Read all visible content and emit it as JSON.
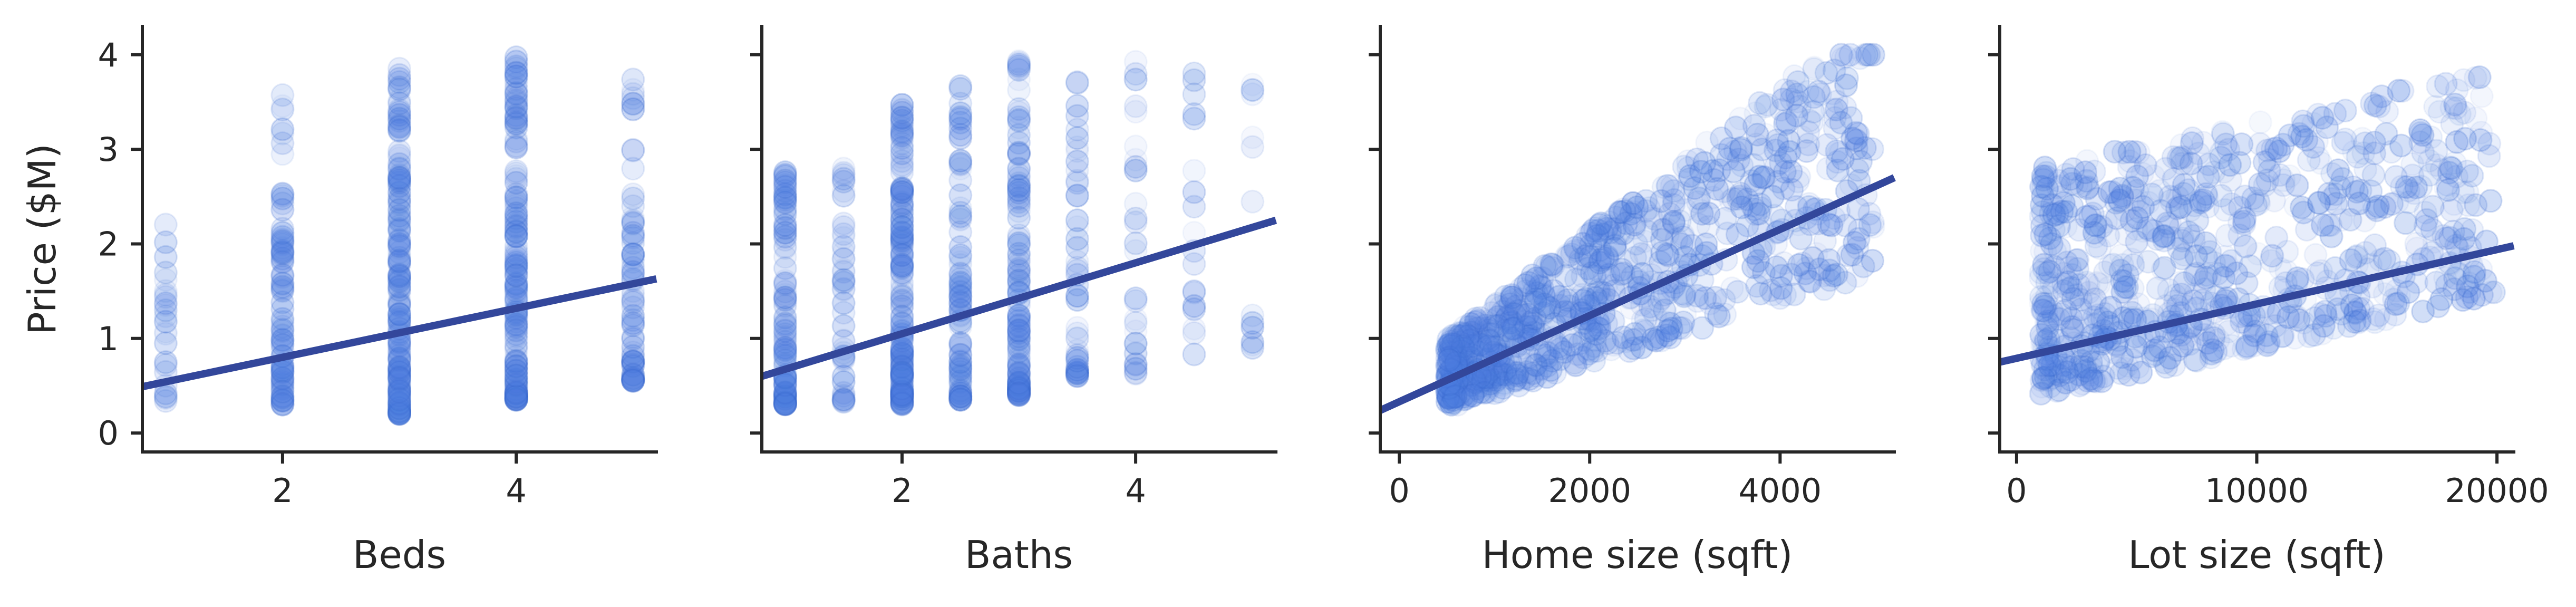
{
  "chart_data": [
    {
      "type": "scatter",
      "xlabel": "Beds",
      "ylabel": "Price ($M)",
      "xlim": [
        0.8,
        5.2
      ],
      "ylim": [
        -0.2,
        4.3
      ],
      "xticks": [
        2,
        4
      ],
      "yticks": [
        0,
        1,
        2,
        3,
        4
      ],
      "point_color": "#4f7fe0",
      "line_color": "#33479b",
      "regression": {
        "x": [
          0.8,
          5.2
        ],
        "y": [
          0.49,
          1.63
        ]
      },
      "discrete_x": [
        1,
        2,
        3,
        4,
        5
      ],
      "spread": {
        "1": [
          0.3,
          2.3
        ],
        "2": [
          0.3,
          3.6
        ],
        "3": [
          0.2,
          3.9
        ],
        "4": [
          0.35,
          4.0
        ],
        "5": [
          0.55,
          4.0
        ]
      },
      "counts": {
        "1": 25,
        "2": 90,
        "3": 180,
        "4": 170,
        "5": 70
      }
    },
    {
      "type": "scatter",
      "xlabel": "Baths",
      "ylabel": "",
      "xlim": [
        0.8,
        5.2
      ],
      "ylim": [
        -0.2,
        4.3
      ],
      "xticks": [
        2,
        4
      ],
      "yticks": [
        0,
        1,
        2,
        3,
        4
      ],
      "point_color": "#4f7fe0",
      "line_color": "#33479b",
      "regression": {
        "x": [
          0.8,
          5.2
        ],
        "y": [
          0.6,
          2.25
        ]
      },
      "discrete_x": [
        1,
        1.5,
        2,
        2.5,
        3,
        3.5,
        4,
        4.5,
        5
      ],
      "spread": {
        "1": [
          0.3,
          2.9
        ],
        "1.5": [
          0.3,
          2.8
        ],
        "2": [
          0.3,
          3.5
        ],
        "2.5": [
          0.35,
          3.8
        ],
        "3": [
          0.4,
          4.0
        ],
        "3.5": [
          0.6,
          4.0
        ],
        "4": [
          0.6,
          4.0
        ],
        "4.5": [
          0.8,
          4.0
        ],
        "5": [
          0.9,
          3.8
        ]
      },
      "counts": {
        "1": 110,
        "1.5": 45,
        "2": 170,
        "2.5": 90,
        "3": 120,
        "3.5": 45,
        "4": 30,
        "4.5": 18,
        "5": 12
      }
    },
    {
      "type": "scatter",
      "xlabel": "Home size (sqft)",
      "ylabel": "",
      "xlim": [
        -200,
        5200
      ],
      "ylim": [
        -0.2,
        4.3
      ],
      "xticks": [
        0,
        2000,
        4000
      ],
      "yticks": [
        0,
        1,
        2,
        3,
        4
      ],
      "point_color": "#4f7fe0",
      "line_color": "#33479b",
      "regression": {
        "x": [
          -200,
          5200
        ],
        "y": [
          0.24,
          2.7
        ]
      },
      "cloud": {
        "x_range": [
          500,
          5000
        ],
        "y_range": [
          0.3,
          4.0
        ],
        "count": 900
      }
    },
    {
      "type": "scatter",
      "xlabel": "Lot size (sqft)",
      "ylabel": "",
      "xlim": [
        -700,
        20700
      ],
      "ylim": [
        -0.2,
        4.3
      ],
      "xticks": [
        0,
        10000,
        20000
      ],
      "yticks": [
        0,
        1,
        2,
        3,
        4
      ],
      "point_color": "#4f7fe0",
      "line_color": "#33479b",
      "regression": {
        "x": [
          -700,
          20700
        ],
        "y": [
          0.75,
          1.98
        ]
      },
      "cloud": {
        "x_range": [
          1000,
          20000
        ],
        "y_range": [
          0.3,
          4.0
        ],
        "count": 800
      }
    }
  ]
}
